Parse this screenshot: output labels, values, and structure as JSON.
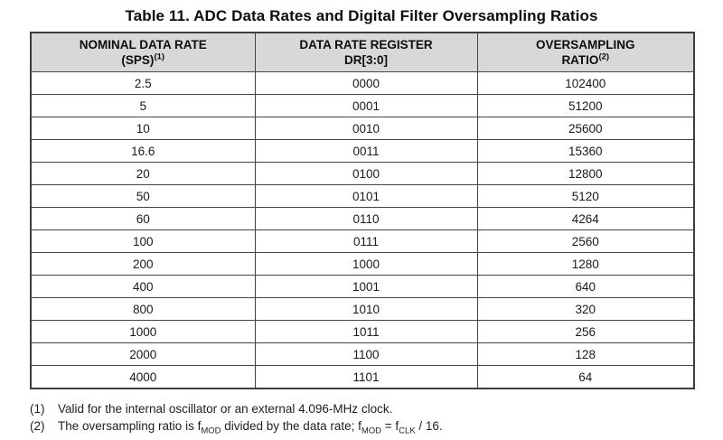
{
  "title": "Table 11. ADC Data Rates and Digital Filter Oversampling Ratios",
  "table": {
    "columns": [
      {
        "line1": "NOMINAL DATA RATE",
        "line2": "(SPS)",
        "sup": "(1)"
      },
      {
        "line1": "DATA RATE REGISTER",
        "line2": "DR[3:0]",
        "sup": ""
      },
      {
        "line1": "OVERSAMPLING",
        "line2": "RATIO",
        "sup": "(2)"
      }
    ],
    "rows": [
      [
        "2.5",
        "0000",
        "102400"
      ],
      [
        "5",
        "0001",
        "51200"
      ],
      [
        "10",
        "0010",
        "25600"
      ],
      [
        "16.6",
        "0011",
        "15360"
      ],
      [
        "20",
        "0100",
        "12800"
      ],
      [
        "50",
        "0101",
        "5120"
      ],
      [
        "60",
        "0110",
        "4264"
      ],
      [
        "100",
        "0111",
        "2560"
      ],
      [
        "200",
        "1000",
        "1280"
      ],
      [
        "400",
        "1001",
        "640"
      ],
      [
        "800",
        "1010",
        "320"
      ],
      [
        "1000",
        "1011",
        "256"
      ],
      [
        "2000",
        "1100",
        "128"
      ],
      [
        "4000",
        "1101",
        "64"
      ]
    ]
  },
  "footnotes": [
    {
      "ref": "(1)",
      "segments": [
        {
          "t": "Valid for the internal oscillator or an external 4.096-MHz clock."
        }
      ]
    },
    {
      "ref": "(2)",
      "segments": [
        {
          "t": "The oversampling ratio is f"
        },
        {
          "t": "MOD",
          "sub": true
        },
        {
          "t": " divided by the data rate; f"
        },
        {
          "t": "MOD",
          "sub": true
        },
        {
          "t": " = f"
        },
        {
          "t": "CLK",
          "sub": true
        },
        {
          "t": " / 16."
        }
      ]
    }
  ],
  "colors": {
    "header_bg": "#d8d8d8",
    "border": "#3d3d3d",
    "text": "#111111"
  }
}
